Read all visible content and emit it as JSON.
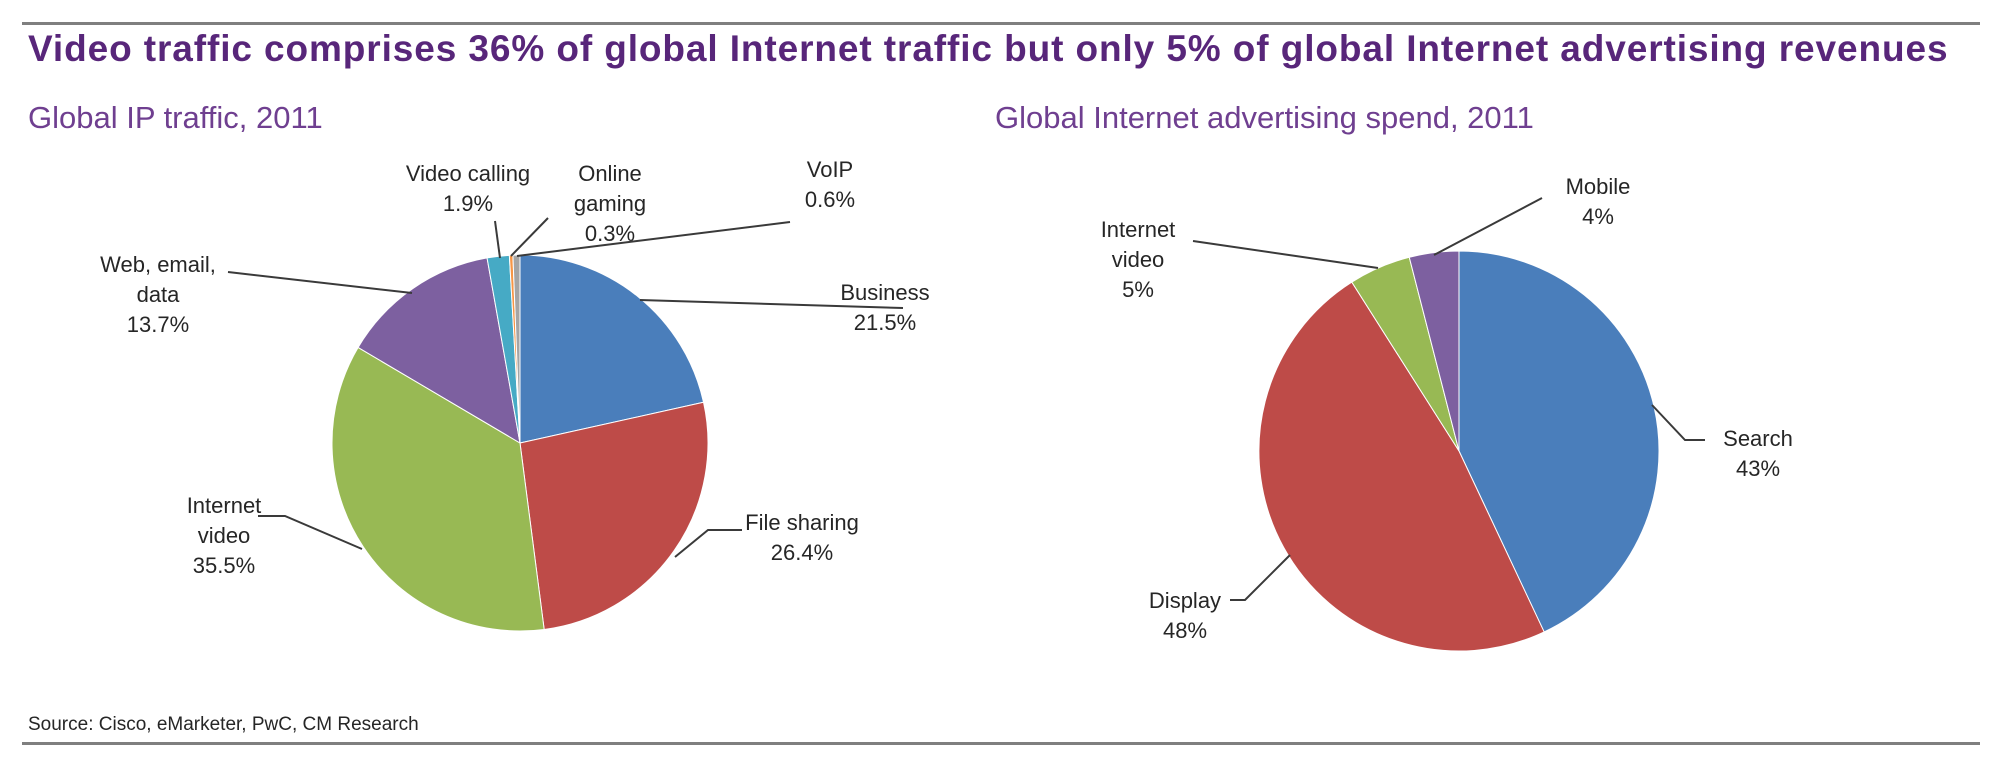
{
  "header": {
    "title": "Video traffic comprises 36% of global Internet traffic but only 5% of global Internet advertising revenues"
  },
  "chart_data": [
    {
      "type": "pie",
      "title": "Global IP traffic, 2011",
      "categories": [
        "Business",
        "File sharing",
        "Internet video",
        "Web, email, data",
        "Video calling",
        "Online gaming",
        "VoIP"
      ],
      "values": [
        21.5,
        26.4,
        35.5,
        13.7,
        1.9,
        0.3,
        0.6
      ],
      "value_labels": [
        "21.5%",
        "26.4%",
        "35.5%",
        "13.7%",
        "1.9%",
        "0.3%",
        "0.6%"
      ],
      "label_lines": [
        [
          "Business"
        ],
        [
          "File sharing"
        ],
        [
          "Internet",
          "video"
        ],
        [
          "Web, email,",
          "data"
        ],
        [
          "Video calling"
        ],
        [
          "Online",
          "gaming"
        ],
        [
          "VoIP"
        ]
      ],
      "colors": [
        "#4a7ebb",
        "#be4b48",
        "#98b954",
        "#7d60a0",
        "#46aac5",
        "#f79646",
        "#a5a5a5"
      ]
    },
    {
      "type": "pie",
      "title": "Global Internet advertising spend, 2011",
      "categories": [
        "Search",
        "Display",
        "Internet video",
        "Mobile"
      ],
      "values": [
        43,
        48,
        5,
        4
      ],
      "value_labels": [
        "43%",
        "48%",
        "5%",
        "4%"
      ],
      "label_lines": [
        [
          "Search"
        ],
        [
          "Display"
        ],
        [
          "Internet",
          "video"
        ],
        [
          "Mobile"
        ]
      ],
      "colors": [
        "#4a7ebb",
        "#be4b48",
        "#98b954",
        "#7d60a0"
      ]
    }
  ],
  "source": "Source:  Cisco, eMarketer,  PwC, CM Research"
}
